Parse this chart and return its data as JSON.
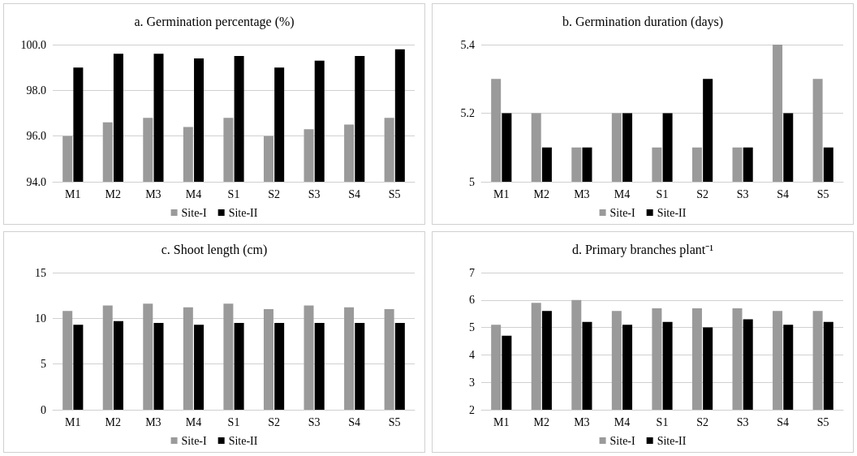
{
  "chart_data": [
    {
      "type": "bar",
      "title": "a. Germination percentage (%)",
      "categories": [
        "M1",
        "M2",
        "M3",
        "M4",
        "S1",
        "S2",
        "S3",
        "S4",
        "S5"
      ],
      "series": [
        {
          "name": "Site-I",
          "color": "#9a9a9a",
          "values": [
            96.0,
            96.6,
            96.8,
            96.4,
            96.8,
            96.0,
            96.3,
            96.5,
            96.8
          ]
        },
        {
          "name": "Site-II",
          "color": "#000000",
          "values": [
            99.0,
            99.6,
            99.6,
            99.4,
            99.5,
            99.0,
            99.3,
            99.5,
            99.8
          ]
        }
      ],
      "ylim": [
        94,
        100
      ],
      "yticks": [
        {
          "value": 94,
          "label": "94.0"
        },
        {
          "value": 96,
          "label": "96.0"
        },
        {
          "value": 98,
          "label": "98.0"
        },
        {
          "value": 100,
          "label": "100.0"
        }
      ],
      "grid": "y",
      "legend": "bottom"
    },
    {
      "type": "bar",
      "title": "b. Germination duration (days)",
      "categories": [
        "M1",
        "M2",
        "M3",
        "M4",
        "S1",
        "S2",
        "S3",
        "S4",
        "S5"
      ],
      "series": [
        {
          "name": "Site-I",
          "color": "#9a9a9a",
          "values": [
            5.3,
            5.2,
            5.1,
            5.2,
            5.1,
            5.1,
            5.1,
            5.4,
            5.3
          ]
        },
        {
          "name": "Site-II",
          "color": "#000000",
          "values": [
            5.2,
            5.1,
            5.1,
            5.2,
            5.2,
            5.3,
            5.1,
            5.2,
            5.1
          ]
        }
      ],
      "ylim": [
        5,
        5.4
      ],
      "yticks": [
        5,
        5.2,
        5.4
      ],
      "grid": "y",
      "legend": "bottom"
    },
    {
      "type": "bar",
      "title": "c. Shoot length (cm)",
      "categories": [
        "M1",
        "M2",
        "M3",
        "M4",
        "S1",
        "S2",
        "S3",
        "S4",
        "S5"
      ],
      "series": [
        {
          "name": "Site-I",
          "color": "#9a9a9a",
          "values": [
            10.8,
            11.4,
            11.6,
            11.2,
            11.6,
            11.0,
            11.4,
            11.2,
            11.0
          ]
        },
        {
          "name": "Site-II",
          "color": "#000000",
          "values": [
            9.3,
            9.7,
            9.5,
            9.3,
            9.5,
            9.5,
            9.5,
            9.5,
            9.5
          ]
        }
      ],
      "ylim": [
        0,
        15
      ],
      "yticks": [
        0,
        5,
        10,
        15
      ],
      "grid": "y",
      "legend": "bottom"
    },
    {
      "type": "bar",
      "title": "d. Primary branches plant⁻¹",
      "categories": [
        "M1",
        "M2",
        "M3",
        "M4",
        "S1",
        "S2",
        "S3",
        "S4",
        "S5"
      ],
      "series": [
        {
          "name": "Site-I",
          "color": "#9a9a9a",
          "values": [
            5.1,
            5.9,
            6.0,
            5.6,
            5.7,
            5.7,
            5.7,
            5.6,
            5.6
          ]
        },
        {
          "name": "Site-II",
          "color": "#000000",
          "values": [
            4.7,
            5.6,
            5.2,
            5.1,
            5.2,
            5.0,
            5.3,
            5.1,
            5.2
          ]
        }
      ],
      "ylim": [
        2,
        7
      ],
      "yticks": [
        2,
        3,
        4,
        5,
        6,
        7
      ],
      "grid": "y",
      "legend": "bottom"
    }
  ]
}
